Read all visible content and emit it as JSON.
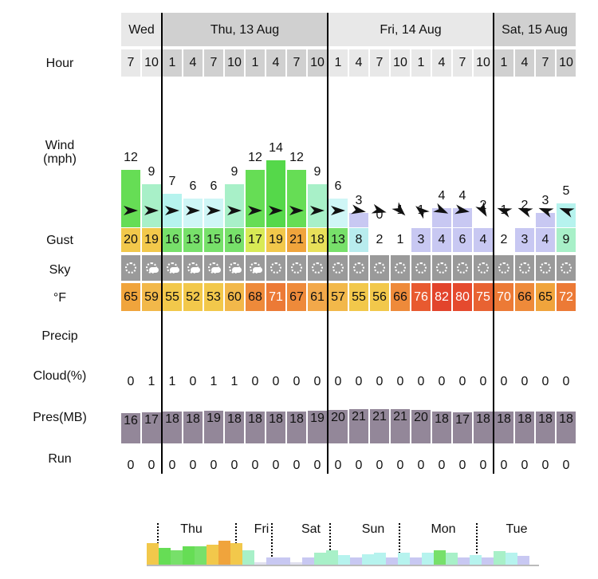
{
  "row_labels": {
    "hour": "Hour",
    "wind": "Wind",
    "wind_unit": "(mph)",
    "gust": "Gust",
    "sky": "Sky",
    "temp": "°F",
    "precip": "Precip",
    "cloud": "Cloud(%)",
    "pressure": "Pres(MB)",
    "run": "Run"
  },
  "days": [
    {
      "label": "Wed",
      "shade": "#e8e8e8"
    },
    {
      "label": "Thu, 13 Aug",
      "shade": "#d0d0d0"
    },
    {
      "label": "Fri, 14 Aug",
      "shade": "#e8e8e8"
    },
    {
      "label": "Sat, 15 Aug",
      "shade": "#d0d0d0"
    }
  ],
  "columns": [
    {
      "day": 0,
      "hour": "7",
      "wind": "12",
      "wind_color": "#66dd55",
      "dir": 0,
      "gust": "20",
      "gust_color": "#f2c84b",
      "sky": "clear",
      "temp": "65",
      "temp_color": "#f0a43c",
      "cloud": "0",
      "pres": "16",
      "run": "0"
    },
    {
      "day": 0,
      "hour": "10",
      "wind": "9",
      "wind_color": "#a8f0c8",
      "dir": 0,
      "gust": "19",
      "gust_color": "#f2c84b",
      "sky": "partly",
      "temp": "59",
      "temp_color": "#f2b84a",
      "cloud": "1",
      "pres": "17",
      "run": "0"
    },
    {
      "day": 1,
      "hour": "1",
      "wind": "7",
      "wind_color": "#b6f3ee",
      "dir": 0,
      "gust": "16",
      "gust_color": "#77e06a",
      "sky": "partly",
      "temp": "55",
      "temp_color": "#f2c84b",
      "cloud": "1",
      "pres": "18",
      "run": "0"
    },
    {
      "day": 1,
      "hour": "4",
      "wind": "6",
      "wind_color": "#cff6f6",
      "dir": 0,
      "gust": "13",
      "gust_color": "#77e06a",
      "sky": "partly",
      "temp": "52",
      "temp_color": "#f2c84b",
      "cloud": "0",
      "pres": "18",
      "run": "0"
    },
    {
      "day": 1,
      "hour": "7",
      "wind": "6",
      "wind_color": "#cff6f6",
      "dir": 0,
      "gust": "15",
      "gust_color": "#77e06a",
      "sky": "partly",
      "temp": "53",
      "temp_color": "#f2c84b",
      "cloud": "1",
      "pres": "19",
      "run": "0"
    },
    {
      "day": 1,
      "hour": "10",
      "wind": "9",
      "wind_color": "#a8f0c8",
      "dir": 0,
      "gust": "16",
      "gust_color": "#77e06a",
      "sky": "partly",
      "temp": "60",
      "temp_color": "#f2b84a",
      "cloud": "1",
      "pres": "18",
      "run": "0"
    },
    {
      "day": 1,
      "hour": "1",
      "wind": "12",
      "wind_color": "#66dd55",
      "dir": 0,
      "gust": "17",
      "gust_color": "#d8ea55",
      "sky": "partly",
      "temp": "68",
      "temp_color": "#ee8a3a",
      "cloud": "0",
      "pres": "18",
      "run": "0"
    },
    {
      "day": 1,
      "hour": "4",
      "wind": "14",
      "wind_color": "#55d84a",
      "dir": 0,
      "gust": "19",
      "gust_color": "#f2c84b",
      "sky": "clear",
      "temp": "71",
      "temp_color": "#ec7a36",
      "cloud": "0",
      "pres": "18",
      "run": "0"
    },
    {
      "day": 1,
      "hour": "7",
      "wind": "12",
      "wind_color": "#66dd55",
      "dir": 0,
      "gust": "21",
      "gust_color": "#f0a43c",
      "sky": "clear",
      "temp": "67",
      "temp_color": "#ee8a3a",
      "cloud": "0",
      "pres": "18",
      "run": "0"
    },
    {
      "day": 1,
      "hour": "10",
      "wind": "9",
      "wind_color": "#a8f0c8",
      "dir": 0,
      "gust": "18",
      "gust_color": "#e8e05a",
      "sky": "clear",
      "temp": "61",
      "temp_color": "#f2a84a",
      "cloud": "0",
      "pres": "19",
      "run": "0"
    },
    {
      "day": 2,
      "hour": "1",
      "wind": "6",
      "wind_color": "#cff6f6",
      "dir": 0,
      "gust": "13",
      "gust_color": "#77e06a",
      "sky": "clear",
      "temp": "57",
      "temp_color": "#f2b84a",
      "cloud": "0",
      "pres": "20",
      "run": "0"
    },
    {
      "day": 2,
      "hour": "4",
      "wind": "3",
      "wind_color": "#c8c8f2",
      "dir": 10,
      "gust": "8",
      "gust_color": "#b8ecee",
      "sky": "clear",
      "temp": "55",
      "temp_color": "#f2c84b",
      "cloud": "0",
      "pres": "21",
      "run": "0"
    },
    {
      "day": 2,
      "hour": "7",
      "wind": "0",
      "wind_color": "#ffffff",
      "dir": 15,
      "gust": "2",
      "gust_color": "#ffffff",
      "sky": "clear",
      "temp": "56",
      "temp_color": "#f2c84b",
      "cloud": "0",
      "pres": "21",
      "run": "0"
    },
    {
      "day": 2,
      "hour": "10",
      "wind": "1",
      "wind_color": "#ffffff",
      "dir": 45,
      "gust": "1",
      "gust_color": "#ffffff",
      "sky": "clear",
      "temp": "66",
      "temp_color": "#ee8a3a",
      "cloud": "0",
      "pres": "21",
      "run": "0"
    },
    {
      "day": 2,
      "hour": "1",
      "wind": "1",
      "wind_color": "#ffffff",
      "dir": -140,
      "gust": "3",
      "gust_color": "#c8c8f2",
      "sky": "clear",
      "temp": "76",
      "temp_color": "#e85a30",
      "cloud": "0",
      "pres": "20",
      "run": "0"
    },
    {
      "day": 2,
      "hour": "4",
      "wind": "4",
      "wind_color": "#c8c8f2",
      "dir": 25,
      "gust": "4",
      "gust_color": "#c8c8f2",
      "sky": "clear",
      "temp": "82",
      "temp_color": "#e2442c",
      "cloud": "0",
      "pres": "18",
      "run": "0"
    },
    {
      "day": 2,
      "hour": "7",
      "wind": "4",
      "wind_color": "#c8c8f2",
      "dir": 10,
      "gust": "6",
      "gust_color": "#c8c8f2",
      "sky": "clear",
      "temp": "80",
      "temp_color": "#e54a2e",
      "cloud": "0",
      "pres": "17",
      "run": "0"
    },
    {
      "day": 2,
      "hour": "10",
      "wind": "2",
      "wind_color": "#ffffff",
      "dir": 60,
      "gust": "4",
      "gust_color": "#c8c8f2",
      "sky": "clear",
      "temp": "75",
      "temp_color": "#e86232",
      "cloud": "0",
      "pres": "18",
      "run": "0"
    },
    {
      "day": 3,
      "hour": "1",
      "wind": "1",
      "wind_color": "#ffffff",
      "dir": 200,
      "gust": "2",
      "gust_color": "#ffffff",
      "sky": "clear",
      "temp": "70",
      "temp_color": "#ec7a36",
      "cloud": "0",
      "pres": "18",
      "run": "0"
    },
    {
      "day": 3,
      "hour": "4",
      "wind": "2",
      "wind_color": "#ffffff",
      "dir": 200,
      "gust": "3",
      "gust_color": "#c8c8f2",
      "sky": "clear",
      "temp": "66",
      "temp_color": "#ee8a3a",
      "cloud": "0",
      "pres": "18",
      "run": "0"
    },
    {
      "day": 3,
      "hour": "7",
      "wind": "3",
      "wind_color": "#c8c8f2",
      "dir": 200,
      "gust": "4",
      "gust_color": "#c8c8f2",
      "sky": "clear",
      "temp": "65",
      "temp_color": "#f0a43c",
      "cloud": "0",
      "pres": "18",
      "run": "0"
    },
    {
      "day": 3,
      "hour": "10",
      "wind": "5",
      "wind_color": "#b6f3ee",
      "dir": 200,
      "gust": "9",
      "gust_color": "#a8f0c8",
      "sky": "clear",
      "temp": "72",
      "temp_color": "#ec7a36",
      "cloud": "0",
      "pres": "18",
      "run": "0"
    }
  ],
  "summary": {
    "labels": [
      "Thu",
      "Fri",
      "Sat",
      "Sun",
      "Mon",
      "Tue"
    ],
    "bar_colors": [
      "#f2c84b",
      "#66dd55",
      "#77e06a",
      "#66dd55",
      "#77e06a",
      "#f2c84b",
      "#f0a43c",
      "#f2c84b",
      "#a8f0c8",
      "#ffffff",
      "#c8c8f2",
      "#c8c8f2",
      "#ffffff",
      "#c8c8f2",
      "#a8f0c8",
      "#a8f0c8",
      "#b6f3ee",
      "#c8c8f2",
      "#b6f3ee",
      "#b6f3ee",
      "#c8c8f2",
      "#b6f3ee",
      "#c8c8f2",
      "#b6f3ee",
      "#77e06a",
      "#a8f0c8",
      "#c8c8f2",
      "#b6f3ee",
      "#c8c8f2",
      "#a8f0c8",
      "#b6f3ee",
      "#c8c8f2"
    ],
    "bar_levels": [
      0.45,
      0.35,
      0.3,
      0.38,
      0.38,
      0.42,
      0.5,
      0.45,
      0.3,
      0.05,
      0.15,
      0.15,
      0.05,
      0.15,
      0.25,
      0.3,
      0.2,
      0.15,
      0.22,
      0.25,
      0.15,
      0.25,
      0.15,
      0.25,
      0.3,
      0.25,
      0.15,
      0.2,
      0.15,
      0.28,
      0.25,
      0.18
    ]
  }
}
